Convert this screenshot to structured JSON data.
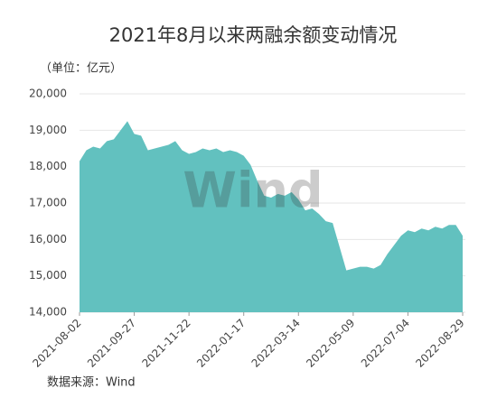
{
  "chart_data": {
    "type": "area",
    "title": "2021年8月以来两融余额变动情况",
    "unit_label": "（单位：亿元）",
    "source": "数据来源：Wind",
    "watermark": "Wind",
    "color": "#62c1bf",
    "grid": true,
    "categories": [
      "2021-08-02",
      null,
      null,
      null,
      null,
      null,
      null,
      null,
      "2021-09-27",
      null,
      null,
      null,
      null,
      null,
      null,
      null,
      "2021-11-22",
      null,
      null,
      null,
      null,
      null,
      null,
      null,
      "2022-01-17",
      null,
      null,
      null,
      null,
      null,
      null,
      null,
      "2022-03-14",
      null,
      null,
      null,
      null,
      null,
      null,
      null,
      "2022-05-09",
      null,
      null,
      null,
      null,
      null,
      null,
      null,
      "2022-07-04",
      null,
      null,
      null,
      null,
      null,
      null,
      null,
      "2022-08-29"
    ],
    "values": [
      18150,
      18450,
      18550,
      18500,
      18700,
      18750,
      19000,
      19250,
      18900,
      18850,
      18450,
      18500,
      18550,
      18600,
      18700,
      18450,
      18350,
      18400,
      18500,
      18450,
      18500,
      18400,
      18450,
      18400,
      18300,
      18050,
      17600,
      17200,
      17150,
      17250,
      17200,
      17300,
      17100,
      16800,
      16850,
      16700,
      16500,
      16450,
      15800,
      15150,
      15200,
      15250,
      15250,
      15200,
      15300,
      15600,
      15850,
      16100,
      16250,
      16200,
      16300,
      16250,
      16350,
      16300,
      16400,
      16400,
      16100
    ],
    "ylim": [
      14000,
      20000
    ],
    "yticks": [
      {
        "value": 14000,
        "label": "14,000"
      },
      {
        "value": 15000,
        "label": "15,000"
      },
      {
        "value": 16000,
        "label": "16,000"
      },
      {
        "value": 17000,
        "label": "17,000"
      },
      {
        "value": 18000,
        "label": "18,000"
      },
      {
        "value": 19000,
        "label": "19,000"
      },
      {
        "value": 20000,
        "label": "20,000"
      }
    ]
  }
}
